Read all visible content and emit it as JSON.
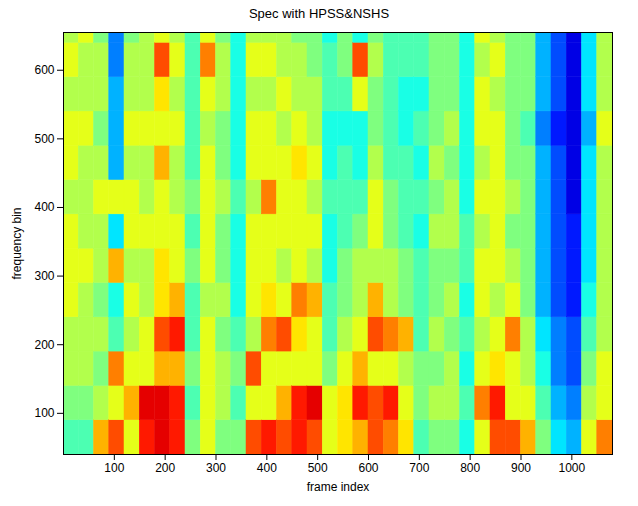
{
  "chart_data": {
    "type": "heatmap",
    "title": "Spec with HPSS&NSHS",
    "x_label": "frame index",
    "y_label": "frequency bin",
    "xlim": [
      0,
      1080
    ],
    "ylim": [
      40,
      655
    ],
    "xticks": [
      100,
      200,
      300,
      400,
      500,
      600,
      700,
      800,
      900,
      1000
    ],
    "yticks": [
      100,
      200,
      300,
      400,
      500,
      600
    ],
    "zlim": [
      0,
      1
    ],
    "x_bins": [
      0,
      30,
      60,
      90,
      120,
      150,
      180,
      210,
      240,
      270,
      300,
      330,
      360,
      390,
      420,
      450,
      480,
      510,
      540,
      570,
      600,
      630,
      660,
      690,
      720,
      750,
      780,
      810,
      840,
      870,
      900,
      930,
      960,
      990,
      1020,
      1050,
      1080
    ],
    "y_bins": [
      40,
      90,
      140,
      190,
      240,
      290,
      340,
      390,
      440,
      490,
      540,
      590,
      640,
      660
    ],
    "values": [
      [
        0.45,
        0.5,
        0.55,
        0.55,
        0.6,
        0.6,
        0.6,
        0.55,
        0.6,
        0.6,
        0.55,
        0.6,
        0.55
      ],
      [
        0.45,
        0.5,
        0.55,
        0.55,
        0.55,
        0.6,
        0.55,
        0.55,
        0.55,
        0.6,
        0.55,
        0.55,
        0.6
      ],
      [
        0.7,
        0.55,
        0.5,
        0.55,
        0.5,
        0.55,
        0.55,
        0.6,
        0.55,
        0.5,
        0.55,
        0.55,
        0.5
      ],
      [
        0.8,
        0.6,
        0.75,
        0.45,
        0.4,
        0.7,
        0.35,
        0.6,
        0.3,
        0.3,
        0.3,
        0.25,
        0.25
      ],
      [
        0.6,
        0.7,
        0.6,
        0.55,
        0.6,
        0.55,
        0.6,
        0.6,
        0.55,
        0.6,
        0.55,
        0.55,
        0.5
      ],
      [
        0.85,
        0.9,
        0.6,
        0.6,
        0.55,
        0.55,
        0.6,
        0.55,
        0.55,
        0.6,
        0.55,
        0.55,
        0.55
      ],
      [
        0.9,
        0.9,
        0.7,
        0.8,
        0.65,
        0.65,
        0.6,
        0.6,
        0.7,
        0.6,
        0.65,
        0.8,
        0.6
      ],
      [
        0.85,
        0.85,
        0.7,
        0.85,
        0.7,
        0.6,
        0.6,
        0.55,
        0.55,
        0.6,
        0.55,
        0.6,
        0.55
      ],
      [
        0.5,
        0.45,
        0.5,
        0.45,
        0.45,
        0.5,
        0.45,
        0.5,
        0.45,
        0.45,
        0.45,
        0.45,
        0.45
      ],
      [
        0.6,
        0.6,
        0.6,
        0.6,
        0.55,
        0.6,
        0.6,
        0.6,
        0.6,
        0.55,
        0.6,
        0.75,
        0.6
      ],
      [
        0.5,
        0.55,
        0.55,
        0.5,
        0.55,
        0.5,
        0.5,
        0.55,
        0.5,
        0.5,
        0.55,
        0.55,
        0.5
      ],
      [
        0.5,
        0.45,
        0.5,
        0.45,
        0.4,
        0.4,
        0.4,
        0.45,
        0.4,
        0.4,
        0.4,
        0.4,
        0.4
      ],
      [
        0.8,
        0.6,
        0.8,
        0.55,
        0.6,
        0.6,
        0.6,
        0.55,
        0.6,
        0.6,
        0.55,
        0.6,
        0.55
      ],
      [
        0.85,
        0.6,
        0.6,
        0.75,
        0.65,
        0.6,
        0.6,
        0.75,
        0.6,
        0.6,
        0.55,
        0.6,
        0.55
      ],
      [
        0.8,
        0.7,
        0.6,
        0.8,
        0.6,
        0.55,
        0.6,
        0.6,
        0.6,
        0.55,
        0.6,
        0.55,
        0.55
      ],
      [
        0.85,
        0.85,
        0.6,
        0.65,
        0.75,
        0.6,
        0.6,
        0.6,
        0.65,
        0.6,
        0.55,
        0.55,
        0.5
      ],
      [
        0.8,
        0.9,
        0.6,
        0.6,
        0.7,
        0.55,
        0.6,
        0.55,
        0.6,
        0.55,
        0.55,
        0.5,
        0.5
      ],
      [
        0.6,
        0.6,
        0.5,
        0.45,
        0.45,
        0.4,
        0.4,
        0.45,
        0.4,
        0.4,
        0.45,
        0.45,
        0.4
      ],
      [
        0.65,
        0.65,
        0.6,
        0.55,
        0.5,
        0.5,
        0.45,
        0.45,
        0.45,
        0.4,
        0.45,
        0.5,
        0.5
      ],
      [
        0.7,
        0.85,
        0.7,
        0.6,
        0.55,
        0.55,
        0.5,
        0.45,
        0.4,
        0.4,
        0.6,
        0.8,
        0.4
      ],
      [
        0.8,
        0.8,
        0.6,
        0.8,
        0.7,
        0.55,
        0.6,
        0.6,
        0.55,
        0.5,
        0.5,
        0.55,
        0.5
      ],
      [
        0.75,
        0.85,
        0.6,
        0.75,
        0.55,
        0.55,
        0.5,
        0.5,
        0.45,
        0.45,
        0.45,
        0.45,
        0.45
      ],
      [
        0.65,
        0.6,
        0.55,
        0.7,
        0.5,
        0.5,
        0.45,
        0.45,
        0.45,
        0.4,
        0.4,
        0.45,
        0.45
      ],
      [
        0.45,
        0.5,
        0.5,
        0.45,
        0.45,
        0.45,
        0.4,
        0.45,
        0.4,
        0.45,
        0.4,
        0.45,
        0.45
      ],
      [
        0.5,
        0.55,
        0.5,
        0.55,
        0.5,
        0.5,
        0.55,
        0.5,
        0.55,
        0.5,
        0.5,
        0.5,
        0.5
      ],
      [
        0.5,
        0.55,
        0.55,
        0.5,
        0.55,
        0.5,
        0.55,
        0.55,
        0.5,
        0.55,
        0.5,
        0.5,
        0.5
      ],
      [
        0.4,
        0.45,
        0.4,
        0.45,
        0.4,
        0.45,
        0.45,
        0.4,
        0.4,
        0.4,
        0.4,
        0.4,
        0.4
      ],
      [
        0.6,
        0.75,
        0.6,
        0.55,
        0.6,
        0.6,
        0.55,
        0.6,
        0.55,
        0.6,
        0.6,
        0.55,
        0.6
      ],
      [
        0.8,
        0.85,
        0.65,
        0.6,
        0.55,
        0.6,
        0.6,
        0.6,
        0.6,
        0.6,
        0.55,
        0.6,
        0.55
      ],
      [
        0.8,
        0.6,
        0.6,
        0.75,
        0.6,
        0.55,
        0.5,
        0.55,
        0.5,
        0.5,
        0.5,
        0.5,
        0.5
      ],
      [
        0.7,
        0.6,
        0.55,
        0.55,
        0.5,
        0.5,
        0.5,
        0.5,
        0.5,
        0.45,
        0.5,
        0.5,
        0.5
      ],
      [
        0.5,
        0.45,
        0.4,
        0.35,
        0.3,
        0.3,
        0.3,
        0.3,
        0.3,
        0.25,
        0.3,
        0.3,
        0.3
      ],
      [
        0.35,
        0.3,
        0.25,
        0.25,
        0.2,
        0.2,
        0.2,
        0.2,
        0.2,
        0.15,
        0.2,
        0.2,
        0.2
      ],
      [
        0.3,
        0.25,
        0.2,
        0.2,
        0.15,
        0.15,
        0.15,
        0.1,
        0.1,
        0.1,
        0.1,
        0.1,
        0.1
      ],
      [
        0.6,
        0.55,
        0.5,
        0.45,
        0.4,
        0.35,
        0.35,
        0.35,
        0.35,
        0.3,
        0.35,
        0.35,
        0.35
      ],
      [
        0.75,
        0.6,
        0.6,
        0.55,
        0.55,
        0.55,
        0.55,
        0.55,
        0.55,
        0.6,
        0.55,
        0.55,
        0.55
      ]
    ]
  }
}
